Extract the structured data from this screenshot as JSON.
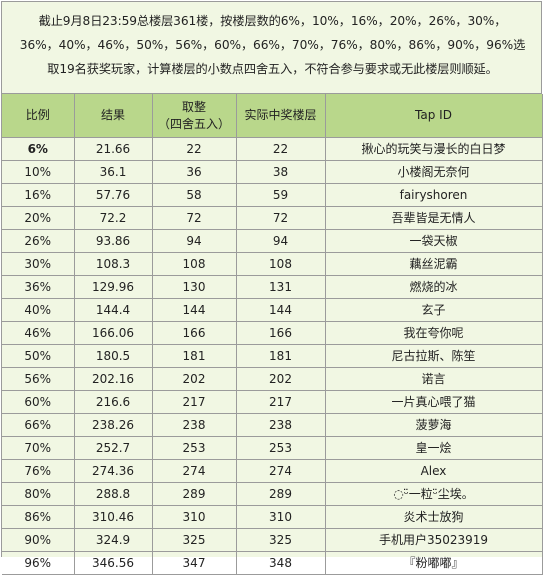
{
  "intro": {
    "line1": "截止9月8日23:59总楼层361楼，按楼层数的6%，10%，16%，20%，26%，30%，",
    "line2": "36%，40%，46%，50%，56%，60%，66%，70%，76%，80%，86%，90%，96%选",
    "line3": "取19名获奖玩家，计算楼层的小数点四舍五入，不符合参与要求或无此楼层则顺延。"
  },
  "table": {
    "headers": {
      "ratio": "比例",
      "result": "结果",
      "round_line1": "取整",
      "round_line2": "（四舍五入）",
      "actual_floor": "实际中奖楼层",
      "tap_id": "Tap ID"
    },
    "rows": [
      {
        "ratio": "6%",
        "result": "21.66",
        "rounded": "22",
        "actual": "22",
        "tap_id": "揪心的玩笑与漫长的白日梦"
      },
      {
        "ratio": "10%",
        "result": "36.1",
        "rounded": "36",
        "actual": "38",
        "tap_id": "小楼阁无奈何"
      },
      {
        "ratio": "16%",
        "result": "57.76",
        "rounded": "58",
        "actual": "59",
        "tap_id": "fairyshoren"
      },
      {
        "ratio": "20%",
        "result": "72.2",
        "rounded": "72",
        "actual": "72",
        "tap_id": "吾辈皆是无情人"
      },
      {
        "ratio": "26%",
        "result": "93.86",
        "rounded": "94",
        "actual": "94",
        "tap_id": "一袋天椒"
      },
      {
        "ratio": "30%",
        "result": "108.3",
        "rounded": "108",
        "actual": "108",
        "tap_id": "藕丝泥霸"
      },
      {
        "ratio": "36%",
        "result": "129.96",
        "rounded": "130",
        "actual": "131",
        "tap_id": "燃烧的冰"
      },
      {
        "ratio": "40%",
        "result": "144.4",
        "rounded": "144",
        "actual": "144",
        "tap_id": "玄子"
      },
      {
        "ratio": "46%",
        "result": "166.06",
        "rounded": "166",
        "actual": "166",
        "tap_id": "我在夸你呢"
      },
      {
        "ratio": "50%",
        "result": "180.5",
        "rounded": "181",
        "actual": "181",
        "tap_id": "尼古拉斯、陈笙"
      },
      {
        "ratio": "56%",
        "result": "202.16",
        "rounded": "202",
        "actual": "202",
        "tap_id": "诺言"
      },
      {
        "ratio": "60%",
        "result": "216.6",
        "rounded": "217",
        "actual": "217",
        "tap_id": "一片真心喂了猫"
      },
      {
        "ratio": "66%",
        "result": "238.26",
        "rounded": "238",
        "actual": "238",
        "tap_id": "菠萝海"
      },
      {
        "ratio": "70%",
        "result": "252.7",
        "rounded": "253",
        "actual": "253",
        "tap_id": "皇一烩"
      },
      {
        "ratio": "76%",
        "result": "274.36",
        "rounded": "274",
        "actual": "274",
        "tap_id": "Alex"
      },
      {
        "ratio": "80%",
        "result": "288.8",
        "rounded": "289",
        "actual": "289",
        "tap_id": "◌ᵕ̈一粒ᵕ̈尘埃。"
      },
      {
        "ratio": "86%",
        "result": "310.46",
        "rounded": "310",
        "actual": "310",
        "tap_id": "炎术士放狗"
      },
      {
        "ratio": "90%",
        "result": "324.9",
        "rounded": "325",
        "actual": "325",
        "tap_id": "手机用户35023919"
      },
      {
        "ratio": "96%",
        "result": "346.56",
        "rounded": "347",
        "actual": "348",
        "tap_id": "『粉嘟嘟』"
      }
    ]
  }
}
